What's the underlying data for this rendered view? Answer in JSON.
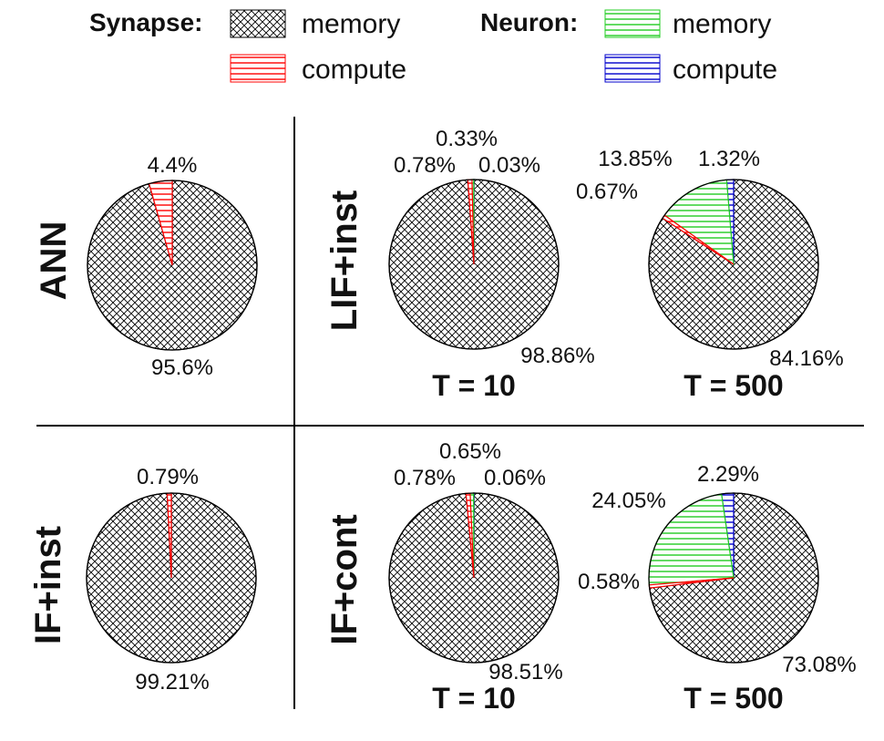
{
  "legend": {
    "synapse_header": "Synapse:",
    "neuron_header": "Neuron:",
    "synapse_memory": "memory",
    "synapse_compute": "compute",
    "neuron_memory": "memory",
    "neuron_compute": "compute"
  },
  "row_labels": {
    "ann": "ANN",
    "lif_inst": "LIF+inst",
    "if_inst": "IF+inst",
    "if_cont": "IF+cont"
  },
  "time_labels": {
    "t10_top": "T = 10",
    "t500_top": "T = 500",
    "t10_bottom": "T = 10",
    "t500_bottom": "T = 500"
  },
  "colors": {
    "synapse_memory": "#000000",
    "synapse_compute": "#ff0000",
    "neuron_memory": "#22cc22",
    "neuron_compute": "#0000cc"
  },
  "chart_data": [
    {
      "type": "pie",
      "id": "ann",
      "categories": [
        "Synapse memory",
        "Synapse compute"
      ],
      "values": [
        95.6,
        4.4
      ],
      "labels": [
        "95.6%",
        "4.4%"
      ]
    },
    {
      "type": "pie",
      "id": "lif_t10",
      "categories": [
        "Synapse memory",
        "Synapse compute",
        "Neuron memory",
        "Neuron compute"
      ],
      "values": [
        98.86,
        0.78,
        0.33,
        0.03
      ],
      "labels": [
        "98.86%",
        "0.78%",
        "0.33%",
        "0.03%"
      ]
    },
    {
      "type": "pie",
      "id": "lif_t500",
      "categories": [
        "Synapse memory",
        "Synapse compute",
        "Neuron memory",
        "Neuron compute"
      ],
      "values": [
        84.16,
        0.67,
        13.85,
        1.32
      ],
      "labels": [
        "84.16%",
        "0.67%",
        "13.85%",
        "1.32%"
      ]
    },
    {
      "type": "pie",
      "id": "if_inst",
      "categories": [
        "Synapse memory",
        "Synapse compute"
      ],
      "values": [
        99.21,
        0.79
      ],
      "labels": [
        "99.21%",
        "0.79%"
      ]
    },
    {
      "type": "pie",
      "id": "ifcont_t10",
      "categories": [
        "Synapse memory",
        "Synapse compute",
        "Neuron memory",
        "Neuron compute"
      ],
      "values": [
        98.51,
        0.78,
        0.65,
        0.06
      ],
      "labels": [
        "98.51%",
        "0.78%",
        "0.65%",
        "0.06%"
      ]
    },
    {
      "type": "pie",
      "id": "ifcont_t500",
      "categories": [
        "Synapse memory",
        "Synapse compute",
        "Neuron memory",
        "Neuron compute"
      ],
      "values": [
        73.08,
        0.58,
        24.05,
        2.29
      ],
      "labels": [
        "73.08%",
        "0.58%",
        "24.05%",
        "2.29%"
      ]
    }
  ]
}
